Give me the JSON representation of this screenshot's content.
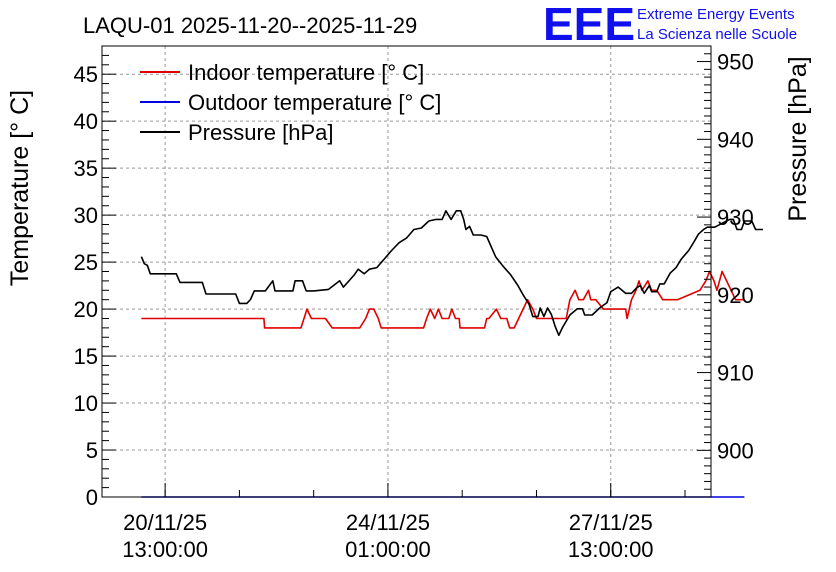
{
  "chart_data": {
    "type": "line",
    "title": "LAQU-01 2025-11-20--2025-11-29",
    "ylabel": "Temperature [° C]",
    "ylabel_right": "Pressure [hPa]",
    "ylim": [
      0,
      48
    ],
    "ylim_right": [
      894,
      952
    ],
    "x_range": [
      1.15,
      9.35
    ],
    "x_ticks": [
      {
        "x": 2,
        "line1": "20/11/25",
        "line2": "13:00:00"
      },
      {
        "x": 5,
        "line1": "24/11/25",
        "line2": "01:00:00"
      },
      {
        "x": 8,
        "line1": "27/11/25",
        "line2": "13:00:00"
      }
    ],
    "y_ticks_left": [
      0,
      5,
      10,
      15,
      20,
      25,
      30,
      35,
      40,
      45
    ],
    "y_ticks_right": [
      900,
      910,
      920,
      930,
      940,
      950
    ],
    "legend": [
      {
        "label": "Indoor temperature [° C]",
        "color": "#e00000"
      },
      {
        "label": "Outdoor temperature [° C]",
        "color": "#0000e0"
      },
      {
        "label": "Pressure [hPa]",
        "color": "#000000"
      }
    ],
    "series": [
      {
        "name": "Indoor temperature [° C]",
        "axis": "left",
        "color": "#e00000",
        "points": [
          [
            1.68,
            19
          ],
          [
            3.33,
            19
          ],
          [
            3.34,
            18
          ],
          [
            3.83,
            18
          ],
          [
            3.91,
            20
          ],
          [
            3.97,
            19
          ],
          [
            4.16,
            19
          ],
          [
            4.25,
            18
          ],
          [
            4.62,
            18
          ],
          [
            4.7,
            19
          ],
          [
            4.75,
            20
          ],
          [
            4.81,
            20
          ],
          [
            4.87,
            19
          ],
          [
            4.91,
            18
          ],
          [
            5.48,
            18
          ],
          [
            5.52,
            19
          ],
          [
            5.57,
            20
          ],
          [
            5.63,
            19
          ],
          [
            5.68,
            20
          ],
          [
            5.73,
            19
          ],
          [
            5.82,
            19
          ],
          [
            5.86,
            20
          ],
          [
            5.91,
            19
          ],
          [
            5.96,
            19
          ],
          [
            5.97,
            18
          ],
          [
            6.3,
            18
          ],
          [
            6.33,
            19
          ],
          [
            6.36,
            19
          ],
          [
            6.46,
            20
          ],
          [
            6.52,
            19
          ],
          [
            6.6,
            19
          ],
          [
            6.64,
            18
          ],
          [
            6.7,
            18
          ],
          [
            6.82,
            20
          ],
          [
            6.88,
            21
          ],
          [
            6.95,
            20
          ],
          [
            7.0,
            19
          ],
          [
            7.4,
            19
          ],
          [
            7.45,
            21
          ],
          [
            7.52,
            22
          ],
          [
            7.57,
            21
          ],
          [
            7.63,
            21
          ],
          [
            7.7,
            22
          ],
          [
            7.73,
            21
          ],
          [
            7.8,
            21
          ],
          [
            7.9,
            20
          ],
          [
            8.2,
            20
          ],
          [
            8.22,
            19
          ],
          [
            8.28,
            21
          ],
          [
            8.34,
            22
          ],
          [
            8.38,
            23
          ],
          [
            8.42,
            22
          ],
          [
            8.5,
            23
          ],
          [
            8.55,
            22
          ],
          [
            8.62,
            22
          ],
          [
            8.7,
            21
          ],
          [
            8.9,
            21
          ],
          [
            9.05,
            21.5
          ],
          [
            9.2,
            22
          ],
          [
            9.28,
            23
          ],
          [
            9.33,
            24
          ],
          [
            9.39,
            23
          ],
          [
            9.43,
            22
          ],
          [
            9.5,
            24
          ],
          [
            9.56,
            23
          ],
          [
            9.62,
            22
          ],
          [
            9.68,
            21
          ],
          [
            9.8,
            21
          ]
        ]
      },
      {
        "name": "Outdoor temperature [° C]",
        "axis": "left",
        "color": "#0000e0",
        "points": [
          [
            1.68,
            0
          ],
          [
            9.8,
            0
          ]
        ]
      },
      {
        "name": "Pressure [hPa]",
        "axis": "right",
        "color": "#000000",
        "points": [
          [
            1.68,
            924.9
          ],
          [
            1.72,
            924
          ],
          [
            1.76,
            923.8
          ],
          [
            1.8,
            922.7
          ],
          [
            2.15,
            922.7
          ],
          [
            2.2,
            921.6
          ],
          [
            2.5,
            921.6
          ],
          [
            2.55,
            920.1
          ],
          [
            2.95,
            920.1
          ],
          [
            3.0,
            918.9
          ],
          [
            3.1,
            918.9
          ],
          [
            3.15,
            919.4
          ],
          [
            3.2,
            920.5
          ],
          [
            3.35,
            920.5
          ],
          [
            3.45,
            921.8
          ],
          [
            3.48,
            920.5
          ],
          [
            3.72,
            920.5
          ],
          [
            3.75,
            921.8
          ],
          [
            3.85,
            921.8
          ],
          [
            3.9,
            920.5
          ],
          [
            4.0,
            920.5
          ],
          [
            4.2,
            920.7
          ],
          [
            4.35,
            921.8
          ],
          [
            4.4,
            921
          ],
          [
            4.55,
            922.6
          ],
          [
            4.6,
            923.3
          ],
          [
            4.68,
            922.7
          ],
          [
            4.75,
            923.3
          ],
          [
            4.85,
            923.5
          ],
          [
            4.95,
            924.6
          ],
          [
            5.05,
            925.7
          ],
          [
            5.15,
            926.7
          ],
          [
            5.25,
            927.3
          ],
          [
            5.35,
            928.4
          ],
          [
            5.45,
            928.6
          ],
          [
            5.55,
            929.5
          ],
          [
            5.65,
            929.7
          ],
          [
            5.73,
            929.7
          ],
          [
            5.78,
            930.8
          ],
          [
            5.85,
            929.7
          ],
          [
            5.92,
            930.8
          ],
          [
            5.98,
            930.8
          ],
          [
            6.02,
            929.7
          ],
          [
            6.05,
            928.4
          ],
          [
            6.1,
            928.8
          ],
          [
            6.15,
            927.7
          ],
          [
            6.25,
            927.7
          ],
          [
            6.33,
            927.5
          ],
          [
            6.45,
            924.9
          ],
          [
            6.55,
            923.7
          ],
          [
            6.65,
            922.6
          ],
          [
            6.75,
            921.2
          ],
          [
            6.82,
            920
          ],
          [
            6.9,
            918.8
          ],
          [
            6.95,
            917.2
          ],
          [
            7.02,
            917.2
          ],
          [
            7.05,
            918.3
          ],
          [
            7.1,
            917.2
          ],
          [
            7.15,
            918.3
          ],
          [
            7.2,
            917.5
          ],
          [
            7.25,
            916
          ],
          [
            7.3,
            914.8
          ],
          [
            7.35,
            915.8
          ],
          [
            7.45,
            917.4
          ],
          [
            7.55,
            918.2
          ],
          [
            7.62,
            918.2
          ],
          [
            7.65,
            917.4
          ],
          [
            7.75,
            917.4
          ],
          [
            7.85,
            918.3
          ],
          [
            7.95,
            919
          ],
          [
            8.0,
            920.4
          ],
          [
            8.1,
            921
          ],
          [
            8.2,
            920.2
          ],
          [
            8.28,
            920.2
          ],
          [
            8.35,
            920.9
          ],
          [
            8.4,
            921.2
          ],
          [
            8.45,
            920.2
          ],
          [
            8.52,
            921.2
          ],
          [
            8.55,
            920.4
          ],
          [
            8.62,
            920.4
          ],
          [
            8.66,
            921.4
          ],
          [
            8.72,
            921.4
          ],
          [
            8.8,
            922.8
          ],
          [
            8.88,
            923.5
          ],
          [
            8.95,
            924.6
          ],
          [
            9.05,
            925.7
          ],
          [
            9.12,
            926.8
          ],
          [
            9.18,
            927.8
          ],
          [
            9.25,
            928.4
          ],
          [
            9.3,
            928.7
          ],
          [
            9.4,
            928.7
          ],
          [
            9.5,
            929.2
          ],
          [
            9.6,
            929.7
          ],
          [
            9.65,
            929.7
          ],
          [
            9.7,
            928.4
          ],
          [
            9.76,
            928.4
          ],
          [
            9.8,
            929.5
          ],
          [
            9.9,
            929.5
          ],
          [
            9.95,
            928.4
          ],
          [
            10.05,
            928.4
          ]
        ]
      }
    ]
  },
  "logo": {
    "letters": "EEE",
    "line1": "Extreme Energy Events",
    "line2": "La Scienza nelle Scuole"
  }
}
